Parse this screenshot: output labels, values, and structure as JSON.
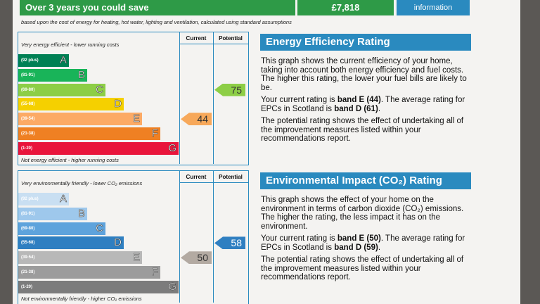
{
  "banner": {
    "text": "Over 3 years you could save",
    "amount": "£7,818",
    "link": "information"
  },
  "note": "based upon the cost of energy for heating, hot water, lighting and ventilation, calculated using standard assumptions",
  "ratings": [
    {
      "top_note": "Very energy efficient - lower running costs",
      "bottom_note": "Not energy efficient - higher running costs",
      "col_current": "Current",
      "col_potential": "Potential",
      "bands": [
        {
          "range": "(92 plus)",
          "letter": "A"
        },
        {
          "range": "(81-91)",
          "letter": "B"
        },
        {
          "range": "(69-80)",
          "letter": "C"
        },
        {
          "range": "(55-68)",
          "letter": "D"
        },
        {
          "range": "(39-54)",
          "letter": "E"
        },
        {
          "range": "(21-38)",
          "letter": "F"
        },
        {
          "range": "(1-20)",
          "letter": "G"
        }
      ],
      "current": 44,
      "potential": 75,
      "title": "Energy Efficiency Rating",
      "paragraphs": [
        [
          "This graph shows the current efficiency of your home, taking into account both energy efficiency and fuel costs. The higher this rating, the lower your fuel bills are likely to be."
        ],
        [
          "Your current rating is ",
          "band E (44)",
          ". The average rating for EPCs in Scotland is ",
          "band D (61)",
          "."
        ],
        [
          "The potential rating shows the effect of undertaking all of the improvement measures listed within your recommendations report."
        ]
      ]
    },
    {
      "top_note": "Very environmentally friendly - lower CO₂ emissions",
      "bottom_note": "Not environmentally friendly - higher CO₂ emissions",
      "col_current": "Current",
      "col_potential": "Potential",
      "bands": [
        {
          "range": "(92 plus)",
          "letter": "A"
        },
        {
          "range": "(81-91)",
          "letter": "B"
        },
        {
          "range": "(69-80)",
          "letter": "C"
        },
        {
          "range": "(55-68)",
          "letter": "D"
        },
        {
          "range": "(39-54)",
          "letter": "E"
        },
        {
          "range": "(21-38)",
          "letter": "F"
        },
        {
          "range": "(1-20)",
          "letter": "G"
        }
      ],
      "current": 50,
      "potential": 58,
      "title": "Environmental Impact (CO₂) Rating",
      "paragraphs": [
        [
          "This graph shows the effect of your home on the environment in terms of carbon dioxide (CO₂) emissions. The higher the rating, the less impact it has on the environment."
        ],
        [
          "Your current rating is ",
          "band E (50)",
          ". The average rating for EPCs in Scotland is ",
          "band D (59)",
          "."
        ],
        [
          "The potential rating shows the effect of undertaking all of the improvement measures listed within your recommendations report."
        ]
      ]
    }
  ]
}
